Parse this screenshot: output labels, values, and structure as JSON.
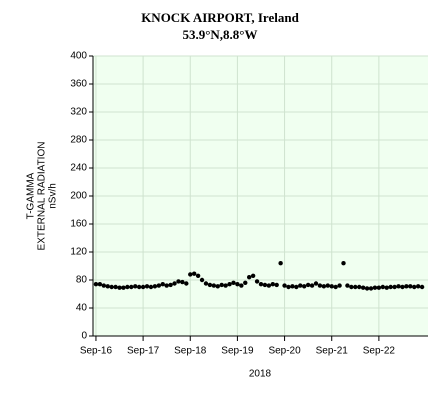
{
  "chart_data": {
    "type": "scatter",
    "title": "KNOCK AIRPORT, Ireland",
    "subtitle": "53.9°N,8.8°W",
    "x_label": "2018",
    "y_label": [
      "T-GAMMA",
      "EXTERNAL RADIATION",
      "nSv/h"
    ],
    "color": "#000000",
    "background": "#f0fff0",
    "grid": true,
    "xlim": [
      -1.5,
      169
    ],
    "xticks": [
      {
        "value": 0,
        "label": "Sep-16"
      },
      {
        "value": 24,
        "label": "Sep-17"
      },
      {
        "value": 48,
        "label": "Sep-18"
      },
      {
        "value": 72,
        "label": "Sep-19"
      },
      {
        "value": 96,
        "label": "Sep-20"
      },
      {
        "value": 120,
        "label": "Sep-21"
      },
      {
        "value": 144,
        "label": "Sep-22"
      }
    ],
    "ylim": [
      0,
      400
    ],
    "yticks": [
      0,
      40,
      80,
      120,
      160,
      200,
      240,
      280,
      320,
      360,
      400
    ],
    "x": [
      0,
      2,
      4,
      6,
      8,
      10,
      12,
      14,
      16,
      18,
      20,
      22,
      24,
      26,
      28,
      30,
      32,
      34,
      36,
      38,
      40,
      42,
      44,
      46,
      48,
      50,
      52,
      54,
      56,
      58,
      60,
      62,
      64,
      66,
      68,
      70,
      72,
      74,
      76,
      78,
      80,
      82,
      84,
      86,
      88,
      90,
      92,
      94,
      96,
      98,
      100,
      102,
      104,
      106,
      108,
      110,
      112,
      114,
      116,
      118,
      120,
      122,
      124,
      126,
      128,
      130,
      132,
      134,
      136,
      138,
      140,
      142,
      144,
      146,
      148,
      150,
      152,
      154,
      156,
      158,
      160,
      162,
      164,
      166
    ],
    "values": [
      74,
      74,
      72,
      71,
      70,
      70,
      69,
      69,
      70,
      70,
      71,
      70,
      70,
      71,
      70,
      71,
      72,
      74,
      72,
      73,
      75,
      78,
      77,
      75,
      88,
      89,
      86,
      80,
      75,
      73,
      72,
      71,
      73,
      72,
      74,
      76,
      74,
      72,
      76,
      84,
      86,
      78,
      74,
      73,
      72,
      74,
      73,
      104,
      72,
      70,
      71,
      70,
      72,
      71,
      73,
      72,
      75,
      72,
      71,
      72,
      71,
      70,
      72,
      104,
      72,
      70,
      70,
      70,
      69,
      68,
      68,
      69,
      69,
      70,
      69,
      70,
      70,
      71,
      70,
      71,
      71,
      70,
      71,
      70
    ]
  }
}
